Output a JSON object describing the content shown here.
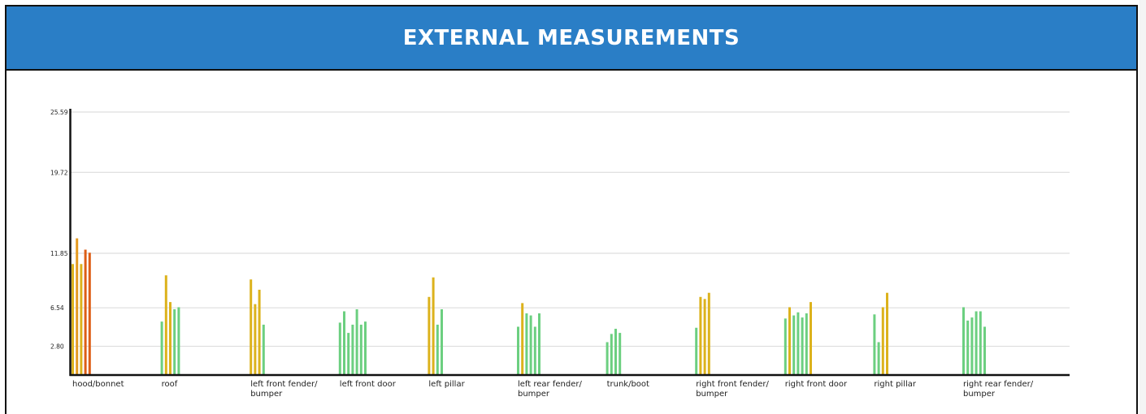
{
  "title": "EXTERNAL MEASUREMENTS",
  "colors": {
    "header_bg": "#2a7ec6",
    "green": "#6ccf80",
    "yellow": "#dcb21c",
    "orange": "#e49a20",
    "red_orange": "#dd5e16",
    "grid": "#dddddd",
    "axis": "#111111"
  },
  "chart_data": {
    "type": "bar",
    "title": "EXTERNAL MEASUREMENTS",
    "xlabel": "",
    "ylabel": "",
    "ylim": [
      0,
      25.59
    ],
    "yticks": [
      2.8,
      6.54,
      11.85,
      19.72,
      25.59
    ],
    "ytick_labels": [
      "2.80",
      "6.54",
      "11.85",
      "19.72",
      "25.59"
    ],
    "grid": true,
    "categories": [
      {
        "label": [
          "hood/bonnet"
        ],
        "values": [
          10.8,
          13.3,
          10.8,
          12.2,
          11.9
        ],
        "colors": [
          "yellow",
          "orange",
          "yellow",
          "red_orange",
          "red_orange"
        ]
      },
      {
        "label": [
          "roof"
        ],
        "values": [
          5.2,
          9.7,
          7.1,
          6.4,
          6.6
        ],
        "colors": [
          "green",
          "yellow",
          "yellow",
          "green",
          "green"
        ]
      },
      {
        "label": [
          "left front fender/",
          "bumper"
        ],
        "values": [
          9.3,
          6.9,
          8.3,
          4.9
        ],
        "colors": [
          "yellow",
          "yellow",
          "yellow",
          "green"
        ]
      },
      {
        "label": [
          "left front door"
        ],
        "values": [
          5.1,
          6.2,
          4.1,
          4.9,
          6.4,
          4.9,
          5.2
        ],
        "colors": [
          "green",
          "green",
          "green",
          "green",
          "green",
          "green",
          "green"
        ]
      },
      {
        "label": [
          "left pillar"
        ],
        "values": [
          7.6,
          9.5,
          4.9,
          6.4
        ],
        "colors": [
          "yellow",
          "yellow",
          "green",
          "green"
        ]
      },
      {
        "label": [
          "left rear fender/",
          "bumper"
        ],
        "values": [
          4.7,
          7.0,
          6.0,
          5.8,
          4.7,
          6.0
        ],
        "colors": [
          "green",
          "yellow",
          "green",
          "green",
          "green",
          "green"
        ]
      },
      {
        "label": [
          "trunk/boot"
        ],
        "values": [
          3.2,
          4.0,
          4.5,
          4.1
        ],
        "colors": [
          "green",
          "green",
          "green",
          "green"
        ]
      },
      {
        "label": [
          "right front fender/",
          "bumper"
        ],
        "values": [
          4.6,
          7.6,
          7.4,
          8.0
        ],
        "colors": [
          "green",
          "yellow",
          "yellow",
          "yellow"
        ]
      },
      {
        "label": [
          "right front door"
        ],
        "values": [
          5.5,
          6.6,
          5.8,
          6.1,
          5.6,
          6.0,
          7.1
        ],
        "colors": [
          "green",
          "yellow",
          "green",
          "green",
          "green",
          "green",
          "yellow"
        ]
      },
      {
        "label": [
          "right pillar"
        ],
        "values": [
          5.9,
          3.2,
          6.6,
          8.0
        ],
        "colors": [
          "green",
          "green",
          "yellow",
          "yellow"
        ]
      },
      {
        "label": [
          "right rear fender/",
          "bumper"
        ],
        "values": [
          6.6,
          5.3,
          5.6,
          6.2,
          6.2,
          4.7
        ],
        "colors": [
          "green",
          "green",
          "green",
          "green",
          "green",
          "green"
        ]
      }
    ]
  }
}
